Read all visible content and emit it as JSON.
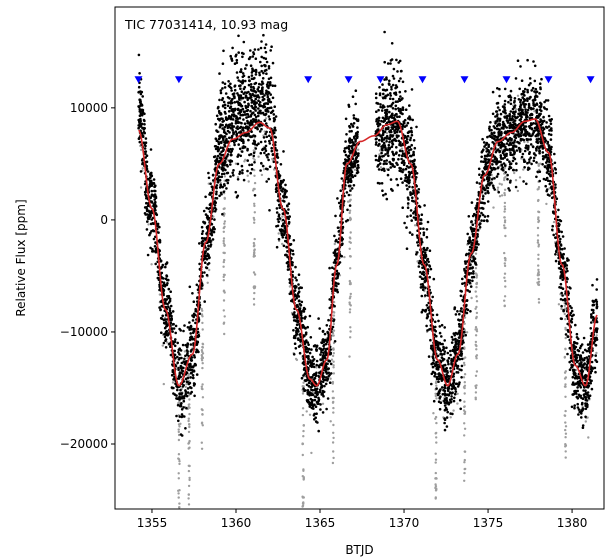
{
  "chart_data": {
    "type": "scatter",
    "title": "",
    "annotation": "TIC 77031414, 10.93 mag",
    "xlabel": "BTJD",
    "ylabel": "Relative Flux [ppm]",
    "xlim": [
      1352.8,
      1381.9
    ],
    "ylim": [
      -25800,
      19000
    ],
    "xticks": [
      1355,
      1360,
      1365,
      1370,
      1375,
      1380
    ],
    "yticks": [
      -20000,
      -10000,
      0,
      10000
    ],
    "grid": false,
    "colors": {
      "binned_points": "#000000",
      "raw_points": "#9e9e9e",
      "trend_line": "#d62728",
      "transit_markers": "#0000ff"
    },
    "transit_markers": {
      "y": 12500,
      "x": [
        1354.2,
        1356.6,
        1364.3,
        1366.7,
        1368.6,
        1371.1,
        1373.6,
        1376.1,
        1378.6,
        1381.1
      ]
    },
    "trend_line": {
      "name": "",
      "x": [
        1354.2,
        1355.0,
        1355.8,
        1356.6,
        1357.4,
        1358.2,
        1359.0,
        1359.8,
        1360.6,
        1361.4,
        1362.0,
        1362.8,
        1363.6,
        1364.4,
        1364.8,
        1365.4,
        1366.0,
        1366.6,
        1367.4,
        1368.2,
        1369.0,
        1369.6,
        1370.4,
        1371.2,
        1372.0,
        1372.6,
        1373.2,
        1374.0,
        1374.8,
        1375.6,
        1376.4,
        1377.2,
        1377.8,
        1378.6,
        1379.4,
        1380.2,
        1380.8,
        1381.5
      ],
      "y": [
        8000,
        1000,
        -8000,
        -14800,
        -12000,
        -2000,
        5000,
        7200,
        7800,
        8700,
        8200,
        1000,
        -8000,
        -14200,
        -14800,
        -12500,
        -4000,
        5000,
        7000,
        7500,
        8500,
        8800,
        5000,
        -4000,
        -12500,
        -14800,
        -12000,
        -3000,
        4000,
        7000,
        7800,
        8800,
        9000,
        6000,
        -4000,
        -13000,
        -14800,
        -8500
      ]
    },
    "point_series": [
      {
        "kind": "raw",
        "points_per_unit": 14
      },
      {
        "kind": "binned",
        "points_per_unit": 210
      }
    ]
  }
}
